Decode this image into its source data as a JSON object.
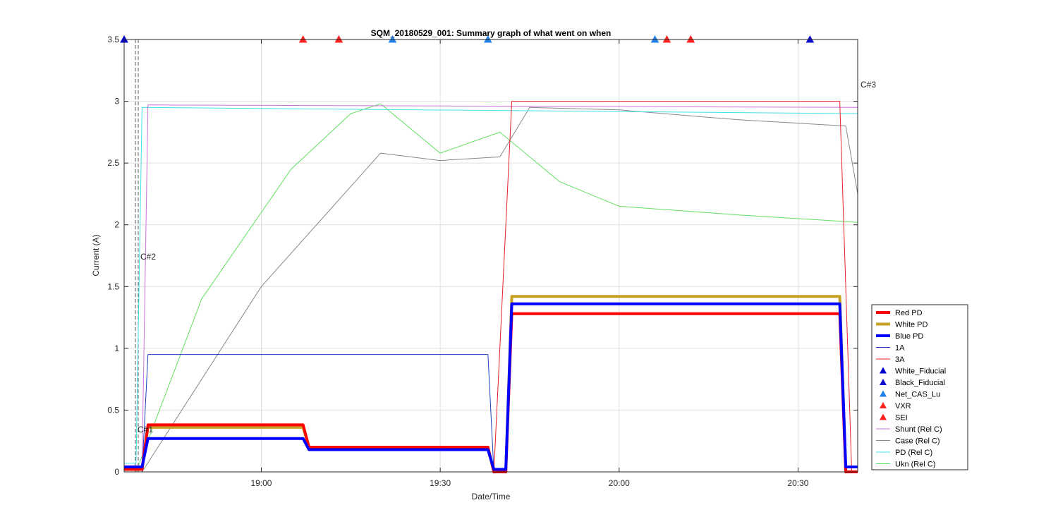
{
  "chart_data": {
    "type": "line",
    "title": "SQM_20180529_001: Summary graph of what went on when",
    "xlabel": "Date/Time",
    "ylabel": "Current (A)",
    "xlim": [
      "18:37",
      "20:40"
    ],
    "ylim": [
      0,
      3.5
    ],
    "grid": true,
    "legend_position": "bottom-right outside",
    "x_ticks": [
      "19:00",
      "19:30",
      "20:00",
      "20:30"
    ],
    "y_ticks": [
      "0",
      "0.5",
      "1",
      "1.5",
      "2",
      "2.5",
      "3",
      "3.5"
    ],
    "colors": {
      "red_pd": "#ff0000",
      "white_pd": "#c8a028",
      "blue_pd": "#0000ff",
      "line_1a": "#2040c0",
      "line_3a": "#e8202a",
      "shunt": "#d070e0",
      "case": "#888888",
      "pd_rel": "#40e0e8",
      "ukn": "#60e060"
    },
    "series": [
      {
        "name": "Red PD",
        "x": [
          "18:37",
          "18:40",
          "18:41",
          "19:07",
          "19:08",
          "19:38",
          "19:39",
          "19:41",
          "19:42",
          "20:37",
          "20:38",
          "20:40"
        ],
        "y": [
          0.02,
          0.02,
          0.38,
          0.38,
          0.2,
          0.2,
          0,
          0,
          1.28,
          1.28,
          0,
          0
        ]
      },
      {
        "name": "White PD",
        "x": [
          "18:37",
          "18:40",
          "18:41",
          "19:07",
          "19:08",
          "19:38",
          "19:39",
          "19:41",
          "19:42",
          "20:37",
          "20:38",
          "20:40"
        ],
        "y": [
          0.02,
          0.02,
          0.36,
          0.36,
          0.2,
          0.2,
          0,
          0,
          1.42,
          1.42,
          0,
          0
        ]
      },
      {
        "name": "Blue PD",
        "x": [
          "18:37",
          "18:40",
          "18:41",
          "19:07",
          "19:08",
          "19:38",
          "19:39",
          "19:41",
          "19:42",
          "20:37",
          "20:38",
          "20:40"
        ],
        "y": [
          0.04,
          0.04,
          0.27,
          0.27,
          0.18,
          0.18,
          0.02,
          0.02,
          1.36,
          1.36,
          0.04,
          0.04
        ]
      },
      {
        "name": "1A",
        "x": [
          "18:37",
          "18:40",
          "18:41",
          "19:38",
          "19:39",
          "20:40"
        ],
        "y": [
          0,
          0,
          0.95,
          0.95,
          0,
          0
        ]
      },
      {
        "name": "3A",
        "x": [
          "18:37",
          "19:39",
          "19:42",
          "20:37",
          "20:39",
          "20:40"
        ],
        "y": [
          0,
          0,
          3,
          3,
          0,
          0
        ]
      },
      {
        "name": "Shunt (Rel C)",
        "x": [
          "18:37",
          "18:40",
          "18:41",
          "20:40"
        ],
        "y": [
          0.05,
          0.05,
          2.97,
          2.95
        ]
      },
      {
        "name": "Case (Rel C)",
        "x": [
          "18:40",
          "19:00",
          "19:20",
          "19:30",
          "19:40",
          "19:45",
          "20:00",
          "20:20",
          "20:38",
          "20:40"
        ],
        "y": [
          0,
          1.5,
          2.58,
          2.52,
          2.55,
          2.95,
          2.93,
          2.85,
          2.8,
          2.25
        ]
      },
      {
        "name": "PD (Rel C)",
        "x": [
          "18:37",
          "18:39",
          "18:40",
          "20:40"
        ],
        "y": [
          0.07,
          0.07,
          2.95,
          2.9
        ]
      },
      {
        "name": "Ukn (Rel C)",
        "x": [
          "18:39",
          "18:50",
          "19:05",
          "19:15",
          "19:20",
          "19:30",
          "19:40",
          "19:50",
          "20:00",
          "20:20",
          "20:40"
        ],
        "y": [
          0,
          1.4,
          2.45,
          2.9,
          2.98,
          2.58,
          2.75,
          2.35,
          2.15,
          2.08,
          2.02
        ]
      }
    ],
    "markers": [
      {
        "name": "White_Fiducial",
        "color": "#0000cc",
        "times": [
          "18:37"
        ]
      },
      {
        "name": "Black_Fiducial",
        "color": "#1010d0",
        "times": [
          "20:32"
        ]
      },
      {
        "name": "Net_CAS_Lu",
        "color": "#2080e8",
        "times": [
          "19:22",
          "19:38",
          "20:06"
        ]
      },
      {
        "name": "VXR",
        "color": "#ff2020",
        "times": [
          "19:07",
          "19:13",
          "20:08",
          "20:12"
        ]
      },
      {
        "name": "SEI",
        "color": "#ff2020",
        "times": [
          "19:13",
          "20:12"
        ]
      }
    ],
    "annotations": [
      "C#1",
      "C#2",
      "C#3"
    ]
  },
  "legend": {
    "entries": [
      "Red PD",
      "White PD",
      "Blue PD",
      "1A",
      "3A",
      "White_Fiducial",
      "Black_Fiducial",
      "Net_CAS_Lu",
      "VXR",
      "SEI",
      "Shunt (Rel C)",
      "Case (Rel C)",
      "PD (Rel C)",
      "Ukn (Rel C)"
    ]
  }
}
